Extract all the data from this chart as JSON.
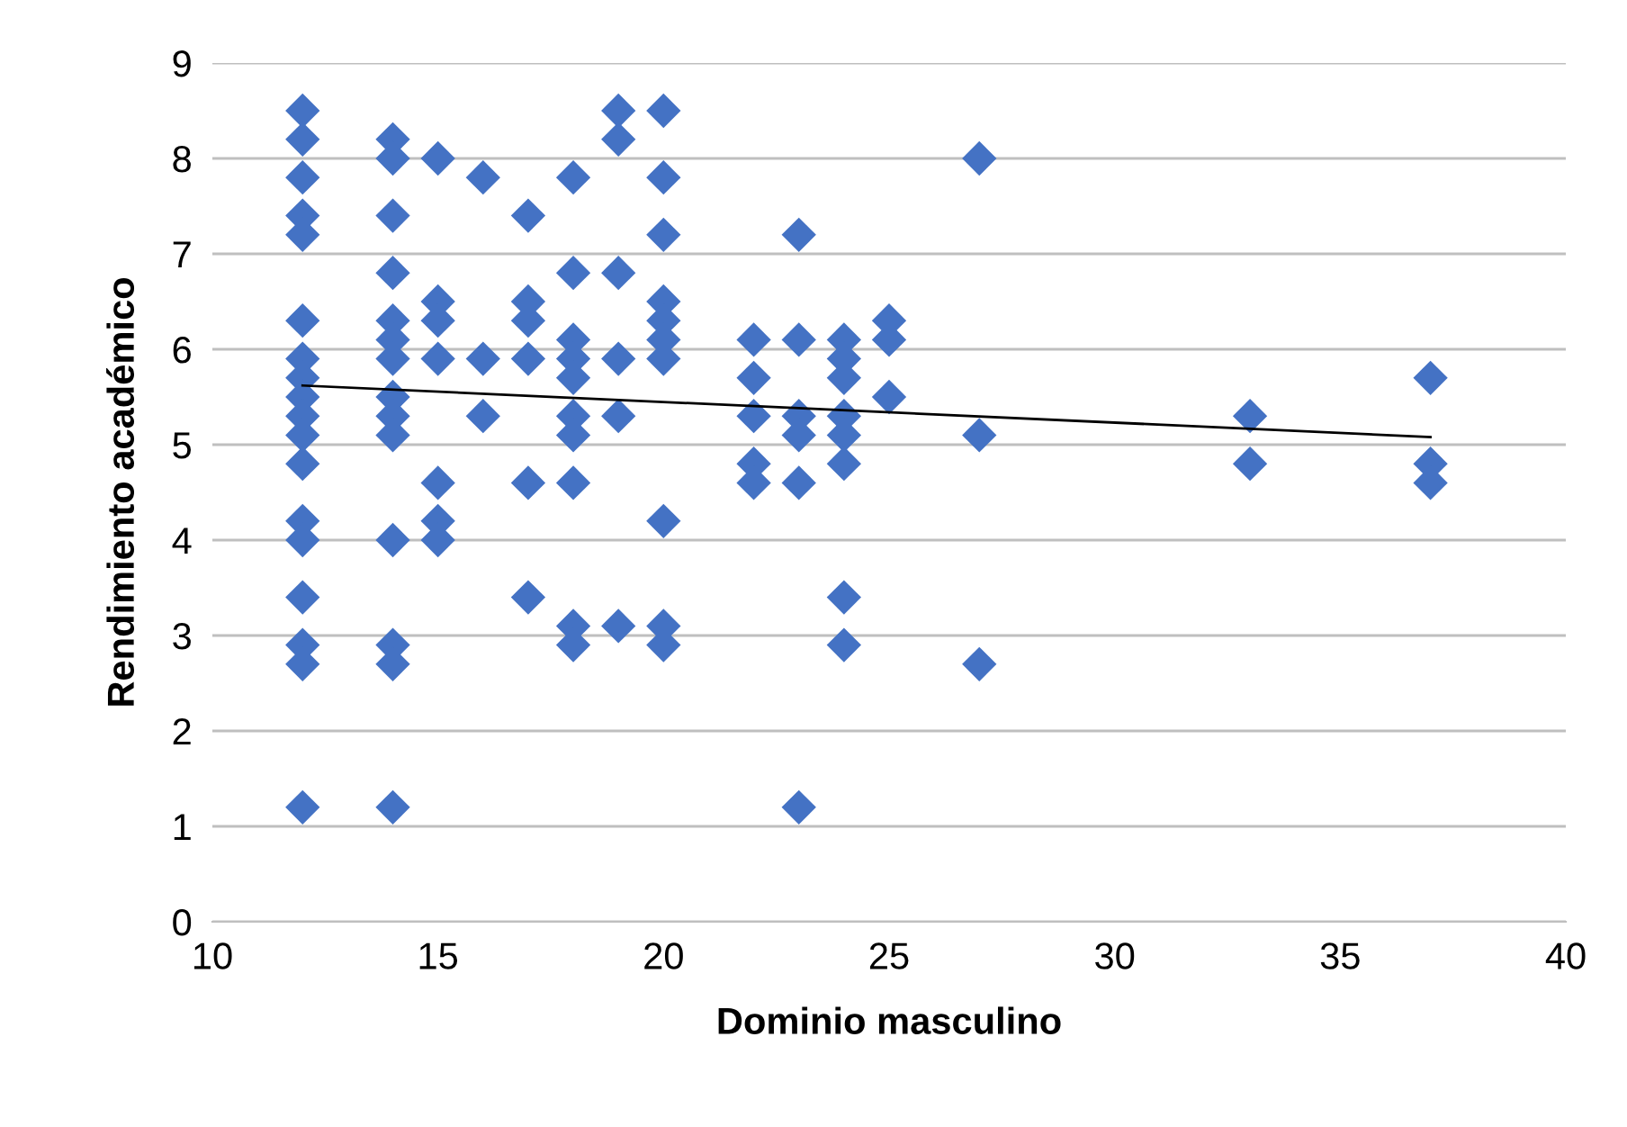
{
  "chart_data": {
    "type": "scatter",
    "xlabel": "Dominio masculino",
    "ylabel": "Rendimiento académico",
    "xlim": [
      10,
      40
    ],
    "xticks": [
      10,
      15,
      20,
      25,
      30,
      35,
      40
    ],
    "ylim": [
      0,
      9
    ],
    "yticks": [
      0,
      1,
      2,
      3,
      4,
      5,
      6,
      7,
      8,
      9
    ],
    "grid": "y",
    "marker": "diamond",
    "legend": false,
    "series": [
      {
        "color": "#4472c4",
        "x": [
          12,
          12,
          12,
          12,
          12,
          12,
          12,
          12,
          12,
          12,
          12,
          12,
          12,
          12,
          12,
          12,
          12,
          12,
          14,
          14,
          14,
          14,
          14,
          14,
          14,
          14,
          14,
          14,
          14,
          14,
          14,
          14,
          15,
          15,
          15,
          15,
          15,
          15,
          15,
          16,
          16,
          16,
          17,
          17,
          17,
          17,
          17,
          17,
          18,
          18,
          18,
          18,
          18,
          18,
          18,
          18,
          18,
          18,
          19,
          19,
          19,
          19,
          19,
          19,
          20,
          20,
          20,
          20,
          20,
          20,
          20,
          20,
          20,
          20,
          22,
          22,
          22,
          22,
          22,
          23,
          23,
          23,
          23,
          23,
          23,
          24,
          24,
          24,
          24,
          24,
          24,
          24,
          24,
          25,
          25,
          25,
          27,
          27,
          27,
          33,
          33,
          37,
          37,
          37
        ],
        "values": [
          8.5,
          8.2,
          7.8,
          7.4,
          7.2,
          6.3,
          5.9,
          5.7,
          5.5,
          5.3,
          5.1,
          4.8,
          4.2,
          4.0,
          3.4,
          2.9,
          2.7,
          1.2,
          8.2,
          8.0,
          7.4,
          6.8,
          6.3,
          6.1,
          5.9,
          5.5,
          5.3,
          5.1,
          4.0,
          2.9,
          2.7,
          1.2,
          8.0,
          6.5,
          6.3,
          5.9,
          4.6,
          4.2,
          4.0,
          7.8,
          5.9,
          5.3,
          7.4,
          6.5,
          6.3,
          5.9,
          4.6,
          3.4,
          7.8,
          6.8,
          6.1,
          5.9,
          5.7,
          5.3,
          5.1,
          4.6,
          3.1,
          2.9,
          8.5,
          8.2,
          6.8,
          5.9,
          5.3,
          3.1,
          8.5,
          7.8,
          7.2,
          6.5,
          6.3,
          6.1,
          5.9,
          4.2,
          3.1,
          2.9,
          6.1,
          5.7,
          5.3,
          4.8,
          4.6,
          7.2,
          6.1,
          5.3,
          5.1,
          4.6,
          1.2,
          6.1,
          5.9,
          5.7,
          5.3,
          5.1,
          4.8,
          3.4,
          2.9,
          6.3,
          6.1,
          5.5,
          8.0,
          5.1,
          2.7,
          5.3,
          4.8,
          5.7,
          4.8,
          4.6
        ]
      },
      {
        "type": "line",
        "color": "#000000",
        "marker": "none",
        "line_style": "solid",
        "x": [
          12,
          37
        ],
        "values": [
          5.62,
          5.08
        ]
      }
    ]
  }
}
